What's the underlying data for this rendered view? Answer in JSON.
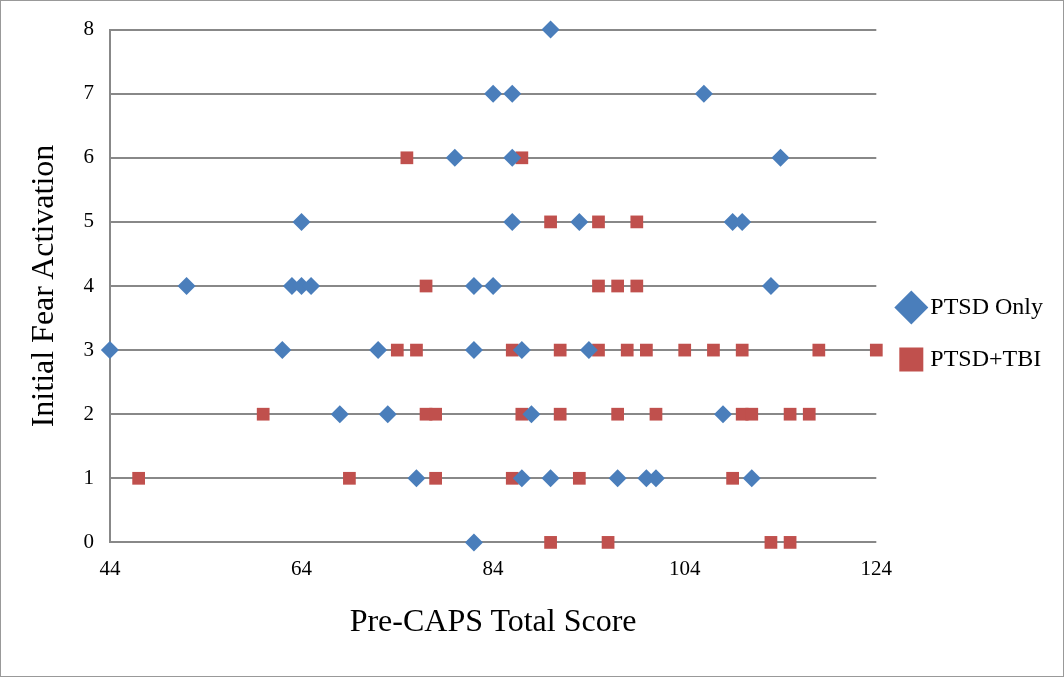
{
  "chart_data": {
    "type": "scatter",
    "xlabel": "Pre-CAPS Total Score",
    "ylabel": "Initial Fear Activation",
    "xlim": [
      44,
      124
    ],
    "xticks": [
      44,
      64,
      84,
      104,
      124
    ],
    "ylim": [
      0,
      8
    ],
    "yticks": [
      0,
      1,
      2,
      3,
      4,
      5,
      6,
      7,
      8
    ],
    "grid": "y",
    "legend": "right",
    "series": [
      {
        "name": "PTSD Only",
        "color": "#4a7ebb",
        "marker": "diamond",
        "x": [
          90,
          84,
          86,
          106,
          80,
          86,
          114,
          64,
          86,
          93,
          109,
          110,
          52,
          63,
          64,
          65,
          82,
          84,
          113,
          44,
          62,
          72,
          82,
          87,
          94,
          68,
          73,
          88,
          108,
          76,
          87,
          90,
          97,
          100,
          101,
          111,
          82
        ],
        "values": [
          8,
          7,
          7,
          7,
          6,
          6,
          6,
          5,
          5,
          5,
          5,
          5,
          4,
          4,
          4,
          4,
          4,
          4,
          4,
          3,
          3,
          3,
          3,
          3,
          3,
          2,
          2,
          2,
          2,
          1,
          1,
          1,
          1,
          1,
          1,
          1,
          0
        ]
      },
      {
        "name": "PTSD+TBI",
        "color": "#c0504d",
        "marker": "square",
        "x": [
          75,
          87,
          90,
          95,
          99,
          77,
          95,
          97,
          99,
          74,
          76,
          86,
          91,
          95,
          98,
          100,
          104,
          107,
          110,
          118,
          124,
          60,
          77,
          78,
          87,
          91,
          97,
          101,
          110,
          111,
          115,
          117,
          47,
          69,
          78,
          86,
          93,
          109,
          90,
          96,
          113,
          115
        ],
        "values": [
          6,
          6,
          5,
          5,
          5,
          4,
          4,
          4,
          4,
          3,
          3,
          3,
          3,
          3,
          3,
          3,
          3,
          3,
          3,
          3,
          3,
          2,
          2,
          2,
          2,
          2,
          2,
          2,
          2,
          2,
          2,
          2,
          1,
          1,
          1,
          1,
          1,
          1,
          0,
          0,
          0,
          0
        ]
      }
    ]
  }
}
